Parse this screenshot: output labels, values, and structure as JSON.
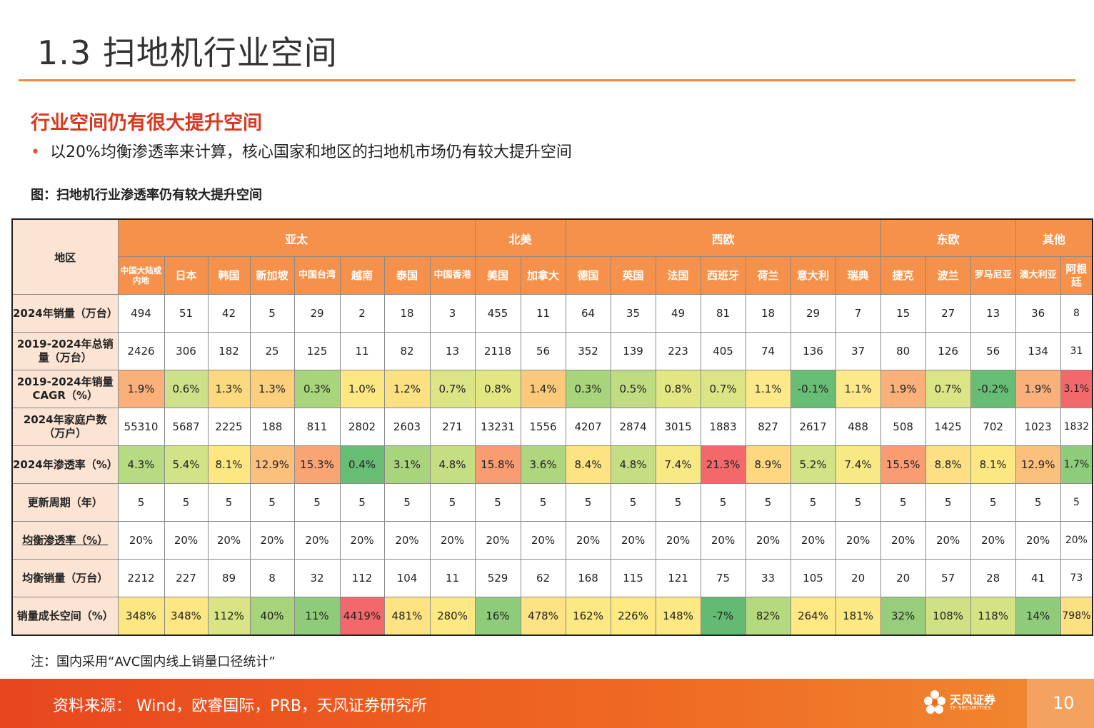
{
  "page_title": "1.3 扫地机行业空间",
  "subhead": "行业空间仍有很大提升空间",
  "bullet": "以20%均衡渗透率来计算，核心国家和地区的扫地机市场仍有较大提升空间",
  "bullet_marker": "•",
  "figure_caption": "图：扫地机行业渗透率仍有较大提升空间",
  "table": {
    "corner": "地区",
    "groups": [
      {
        "name": "亚太",
        "span": 8
      },
      {
        "name": "北美",
        "span": 2
      },
      {
        "name": "西欧",
        "span": 7
      },
      {
        "name": "东欧",
        "span": 3
      },
      {
        "name": "其他",
        "span": 2
      }
    ],
    "countries": [
      "中国大陆或内地",
      "日本",
      "韩国",
      "新加坡",
      "中国台湾",
      "越南",
      "泰国",
      "中国香港",
      "美国",
      "加拿大",
      "德国",
      "英国",
      "法国",
      "西班牙",
      "荷兰",
      "意大利",
      "瑞典",
      "捷克",
      "波兰",
      "罗马尼亚",
      "澳大利亚",
      "阿根廷"
    ],
    "rows": [
      {
        "label": "2024年销量（万台）",
        "values": [
          "494",
          "51",
          "42",
          "5",
          "29",
          "2",
          "18",
          "3",
          "455",
          "11",
          "64",
          "35",
          "49",
          "81",
          "18",
          "29",
          "7",
          "15",
          "27",
          "13",
          "36",
          "8"
        ]
      },
      {
        "label": "2019-2024年总销量（万台）",
        "values": [
          "2426",
          "306",
          "182",
          "25",
          "125",
          "11",
          "82",
          "13",
          "2118",
          "56",
          "352",
          "139",
          "223",
          "405",
          "74",
          "136",
          "37",
          "80",
          "126",
          "56",
          "134",
          "31"
        ]
      },
      {
        "label": "2019-2024年销量CAGR（%）",
        "values": [
          "1.9%",
          "0.6%",
          "1.3%",
          "1.3%",
          "0.3%",
          "1.0%",
          "1.2%",
          "0.7%",
          "0.8%",
          "1.4%",
          "0.3%",
          "0.5%",
          "0.8%",
          "0.7%",
          "1.1%",
          "-0.1%",
          "1.1%",
          "1.9%",
          "0.7%",
          "-0.2%",
          "1.9%",
          "3.1%"
        ],
        "colors": [
          "#f9b07a",
          "#cfe08a",
          "#fbd97e",
          "#fbcf7c",
          "#a8d47c",
          "#fde783",
          "#fbe182",
          "#dbe585",
          "#e2e683",
          "#fbc97b",
          "#a8d47c",
          "#bfdc82",
          "#e2e683",
          "#dbe585",
          "#fee98a",
          "#68bd74",
          "#fee98a",
          "#f9b07a",
          "#dbe585",
          "#68bd74",
          "#f9b07a",
          "#f3696b"
        ]
      },
      {
        "label": "2024年家庭户数（万户）",
        "values": [
          "55310",
          "5687",
          "2225",
          "188",
          "811",
          "2802",
          "2603",
          "271",
          "13231",
          "1556",
          "4207",
          "2874",
          "3015",
          "1883",
          "827",
          "2617",
          "488",
          "508",
          "1425",
          "702",
          "1023",
          "1832"
        ]
      },
      {
        "label": "2024年渗透率（%）",
        "values": [
          "4.3%",
          "5.4%",
          "8.1%",
          "12.9%",
          "15.3%",
          "0.4%",
          "3.1%",
          "4.8%",
          "15.8%",
          "3.6%",
          "8.4%",
          "4.8%",
          "7.4%",
          "21.3%",
          "8.9%",
          "5.2%",
          "7.4%",
          "15.5%",
          "8.8%",
          "8.1%",
          "12.9%",
          "1.7%"
        ],
        "colors": [
          "#b7da82",
          "#d2e286",
          "#fde783",
          "#fbc07b",
          "#f9a473",
          "#68bd74",
          "#a8d47c",
          "#c6de83",
          "#f99c72",
          "#add67e",
          "#fee383",
          "#c6de83",
          "#f8e984",
          "#f3696b",
          "#fdd881",
          "#d2e286",
          "#f8e984",
          "#f99c72",
          "#fee084",
          "#fde783",
          "#fbc07b",
          "#8ecb7a"
        ]
      },
      {
        "label": "更新周期（年）",
        "values": [
          "5",
          "5",
          "5",
          "5",
          "5",
          "5",
          "5",
          "5",
          "5",
          "5",
          "5",
          "5",
          "5",
          "5",
          "5",
          "5",
          "5",
          "5",
          "5",
          "5",
          "5",
          "5"
        ]
      },
      {
        "label": "均衡渗透率（%）",
        "underline": true,
        "values": [
          "20%",
          "20%",
          "20%",
          "20%",
          "20%",
          "20%",
          "20%",
          "20%",
          "20%",
          "20%",
          "20%",
          "20%",
          "20%",
          "20%",
          "20%",
          "20%",
          "20%",
          "20%",
          "20%",
          "20%",
          "20%",
          "20%"
        ]
      },
      {
        "label": "均衡销量（万台）",
        "values": [
          "2212",
          "227",
          "89",
          "8",
          "32",
          "112",
          "104",
          "11",
          "529",
          "62",
          "168",
          "115",
          "121",
          "75",
          "33",
          "105",
          "20",
          "20",
          "57",
          "28",
          "41",
          "73"
        ]
      },
      {
        "label": "销量成长空间（%）",
        "values": [
          "348%",
          "348%",
          "112%",
          "40%",
          "11%",
          "4419%",
          "481%",
          "280%",
          "16%",
          "478%",
          "162%",
          "226%",
          "148%",
          "-7%",
          "82%",
          "264%",
          "181%",
          "32%",
          "108%",
          "118%",
          "14%",
          "798%"
        ],
        "colors": [
          "#fde783",
          "#fde783",
          "#d8e486",
          "#a8d47c",
          "#8ecb7a",
          "#f3696b",
          "#fde383",
          "#fde983",
          "#8ecb7a",
          "#fde383",
          "#fde983",
          "#fee983",
          "#fde983",
          "#63bb73",
          "#b5d97f",
          "#fee983",
          "#fde983",
          "#97cd7b",
          "#d0e185",
          "#d6e385",
          "#8ecb7a",
          "#fce182"
        ]
      }
    ]
  },
  "note": "注：国内采用“AVC国内线上销量口径统计”",
  "footer": {
    "source": "资料来源： Wind，欧睿国际，PRB，天风证券研究所",
    "logo_text": "天风证券",
    "logo_sub": "TF SECURITIES",
    "page_number": "10"
  }
}
